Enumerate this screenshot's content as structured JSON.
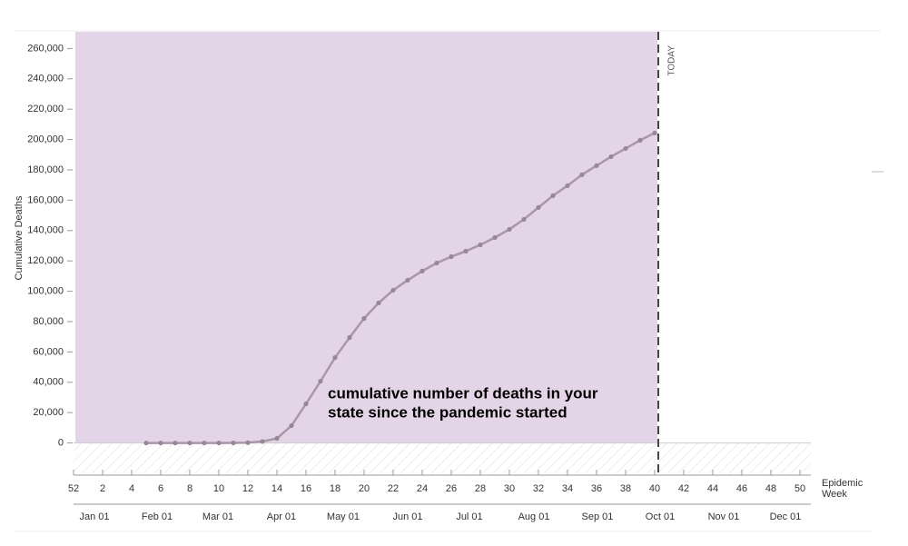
{
  "chart_data": {
    "type": "line",
    "y_label": "Cumulative Deaths",
    "x_label": [
      "Epidemic",
      "Week"
    ],
    "annotation": [
      "cumulative number of deaths in your",
      "state since the pandemic started"
    ],
    "today_label": "TODAY",
    "today_week": 40.25,
    "color": "#a896aa",
    "point_color": "#978797",
    "shade_color": "#e3d5e7",
    "x": [
      5,
      6,
      7,
      8,
      9,
      10,
      11,
      12,
      13,
      14,
      15,
      16,
      17,
      18,
      19,
      20,
      21,
      22,
      23,
      24,
      25,
      26,
      27,
      28,
      29,
      30,
      31,
      32,
      33,
      34,
      35,
      36,
      37,
      38,
      39,
      40
    ],
    "values": [
      0,
      0,
      0,
      0,
      0,
      0,
      50,
      200,
      1000,
      3000,
      11400,
      25800,
      40700,
      56300,
      69500,
      82100,
      92300,
      100700,
      107300,
      113300,
      118600,
      122800,
      126400,
      130600,
      135400,
      140800,
      147400,
      155200,
      163000,
      169600,
      176800,
      182800,
      188700,
      194100,
      199500,
      204300
    ],
    "xlim": [
      0,
      50.75
    ],
    "ylim": [
      -20000,
      271000
    ],
    "xticks": [
      {
        "value": 0,
        "label": "52"
      },
      2,
      4,
      6,
      8,
      10,
      12,
      14,
      16,
      18,
      20,
      22,
      24,
      26,
      28,
      30,
      32,
      34,
      36,
      38,
      40,
      42,
      44,
      46,
      48,
      50
    ],
    "month_ticks": [
      {
        "value": 1.44,
        "label": "Jan 01"
      },
      {
        "value": 5.75,
        "label": "Feb 01"
      },
      {
        "value": 9.94,
        "label": "Mar 01"
      },
      {
        "value": 14.31,
        "label": "Apr 01"
      },
      {
        "value": 18.56,
        "label": "May 01"
      },
      {
        "value": 23.0,
        "label": "Jun 01"
      },
      {
        "value": 27.25,
        "label": "Jul 01"
      },
      {
        "value": 31.69,
        "label": "Aug 01"
      },
      {
        "value": 36.06,
        "label": "Sep 01"
      },
      {
        "value": 40.375,
        "label": "Oct 01"
      },
      {
        "value": 44.75,
        "label": "Nov 01"
      },
      {
        "value": 49.0,
        "label": "Dec 01"
      }
    ],
    "yticks": [
      {
        "value": 0,
        "label": "0"
      },
      {
        "value": 20000,
        "label": "20,000"
      },
      {
        "value": 40000,
        "label": "40,000"
      },
      {
        "value": 60000,
        "label": "60,000"
      },
      {
        "value": 80000,
        "label": "80,000"
      },
      {
        "value": 100000,
        "label": "100,000"
      },
      {
        "value": 120000,
        "label": "120,000"
      },
      {
        "value": 140000,
        "label": "140,000"
      },
      {
        "value": 160000,
        "label": "160,000"
      },
      {
        "value": 180000,
        "label": "180,000"
      },
      {
        "value": 200000,
        "label": "200,000"
      },
      {
        "value": 220000,
        "label": "220,000"
      },
      {
        "value": 240000,
        "label": "240,000"
      },
      {
        "value": 260000,
        "label": "260,000"
      }
    ]
  }
}
